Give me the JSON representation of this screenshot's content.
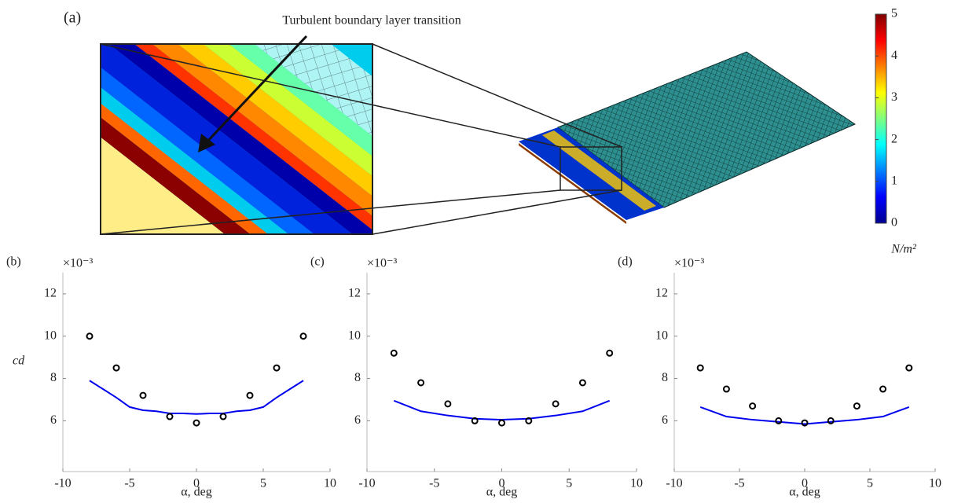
{
  "panel_a": {
    "label": "(a)",
    "annotation": "Turbulent boundary layer transition",
    "colorbar": {
      "lim": [
        0,
        5
      ],
      "ticks": [
        0,
        1,
        2,
        3,
        4,
        5
      ],
      "label": "N/m²"
    }
  },
  "chart_data": [
    {
      "type": "line",
      "label": "(b)",
      "ylabel": "cd",
      "xlabel": "α, deg",
      "y_multiplier": "×10⁻³",
      "xlim": [
        -10,
        10
      ],
      "xticks": [
        -10,
        -5,
        0,
        5,
        10
      ],
      "ylim": [
        3.6,
        13
      ],
      "yticks": [
        6,
        8,
        10,
        12
      ],
      "series": [
        {
          "mode": "line",
          "color": "#0000ee",
          "x": [
            -8,
            -7,
            -6,
            -5,
            -4,
            -3,
            -2,
            -1,
            0,
            1,
            2,
            3,
            4,
            5,
            6,
            7,
            8
          ],
          "values": [
            7.9,
            7.5,
            7.1,
            6.65,
            6.5,
            6.45,
            6.35,
            6.35,
            6.32,
            6.35,
            6.35,
            6.45,
            6.5,
            6.65,
            7.1,
            7.5,
            7.9
          ]
        },
        {
          "mode": "markers",
          "color": "#000000",
          "x": [
            -8,
            -6,
            -4,
            -2,
            0,
            2,
            4,
            6,
            8
          ],
          "values": [
            10.0,
            8.5,
            7.2,
            6.2,
            5.9,
            6.2,
            7.2,
            8.5,
            10.0
          ]
        }
      ]
    },
    {
      "type": "line",
      "label": "(c)",
      "xlabel": "α, deg",
      "y_multiplier": "×10⁻³",
      "xlim": [
        -10,
        10
      ],
      "xticks": [
        -10,
        -5,
        0,
        5,
        10
      ],
      "ylim": [
        3.6,
        13
      ],
      "yticks": [
        6,
        8,
        10,
        12
      ],
      "series": [
        {
          "mode": "line",
          "color": "#0000ee",
          "x": [
            -8,
            -6,
            -4,
            -2,
            0,
            2,
            4,
            6,
            8
          ],
          "values": [
            6.95,
            6.45,
            6.25,
            6.1,
            6.05,
            6.1,
            6.25,
            6.45,
            6.95
          ]
        },
        {
          "mode": "markers",
          "color": "#000000",
          "x": [
            -8,
            -6,
            -4,
            -2,
            0,
            2,
            4,
            6,
            8
          ],
          "values": [
            9.2,
            7.8,
            6.8,
            6.0,
            5.9,
            6.0,
            6.8,
            7.8,
            9.2
          ]
        }
      ]
    },
    {
      "type": "line",
      "label": "(d)",
      "xlabel": "α, deg",
      "y_multiplier": "×10⁻³",
      "xlim": [
        -10,
        10
      ],
      "xticks": [
        -10,
        -5,
        0,
        5,
        10
      ],
      "ylim": [
        3.6,
        13
      ],
      "yticks": [
        6,
        8,
        10,
        12
      ],
      "series": [
        {
          "mode": "line",
          "color": "#0000ee",
          "x": [
            -8,
            -6,
            -4,
            -2,
            0,
            2,
            4,
            6,
            8
          ],
          "values": [
            6.65,
            6.2,
            6.05,
            5.95,
            5.85,
            5.95,
            6.05,
            6.2,
            6.65
          ]
        },
        {
          "mode": "markers",
          "color": "#000000",
          "x": [
            -8,
            -6,
            -4,
            -2,
            0,
            2,
            4,
            6,
            8
          ],
          "values": [
            8.5,
            7.5,
            6.7,
            6.0,
            5.9,
            6.0,
            6.7,
            7.5,
            8.5
          ]
        }
      ]
    }
  ]
}
